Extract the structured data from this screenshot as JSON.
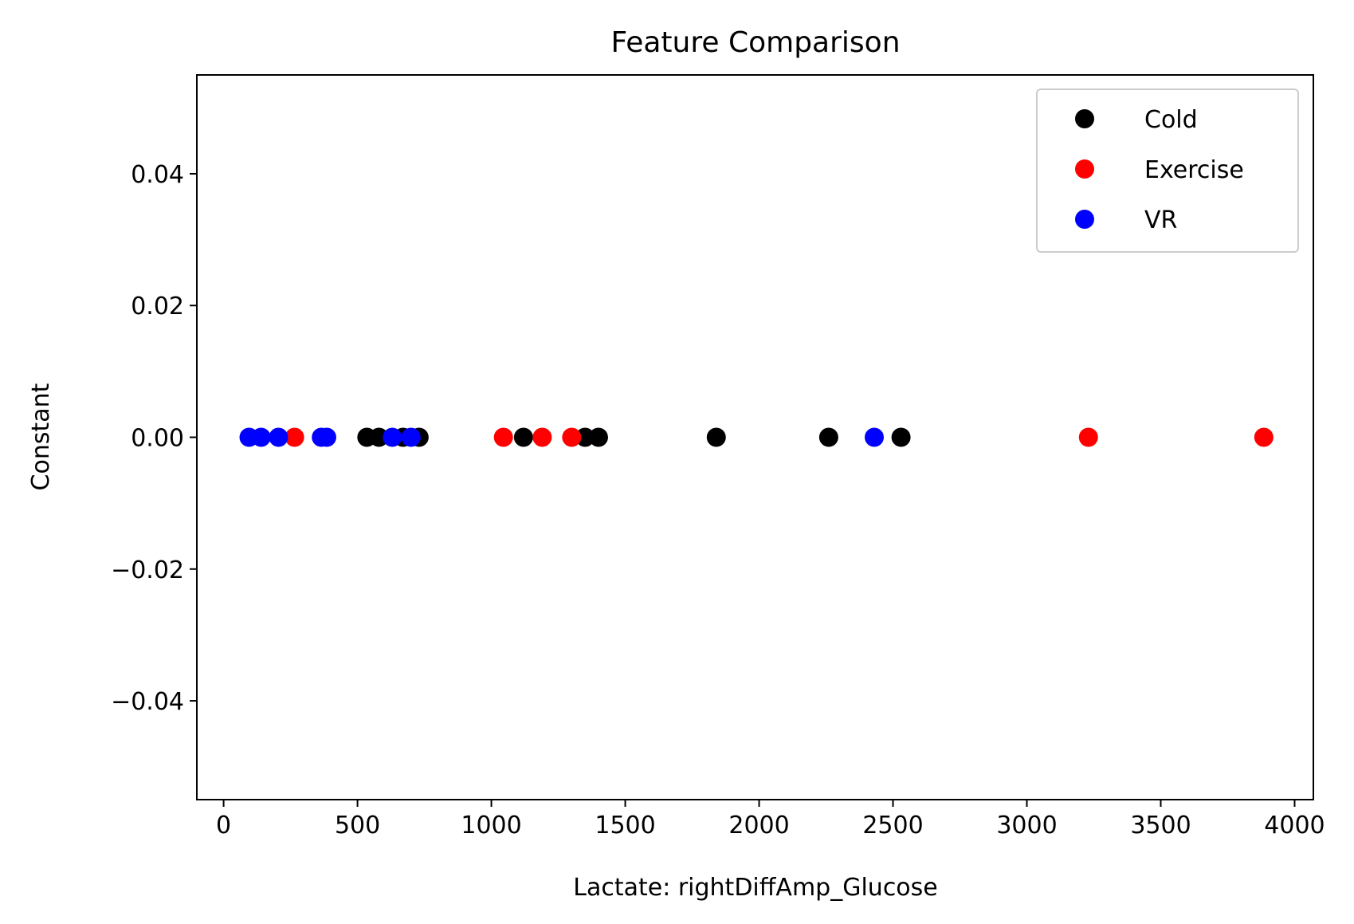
{
  "chart_data": {
    "type": "scatter",
    "title": "Feature Comparison",
    "xlabel": "Lactate: rightDiffAmp_Glucose",
    "ylabel": "Constant",
    "xlim": [
      -100,
      4070
    ],
    "ylim": [
      -0.055,
      0.055
    ],
    "x_ticks": [
      0,
      500,
      1000,
      1500,
      2000,
      2500,
      3000,
      3500,
      4000
    ],
    "x_tick_labels": [
      "0",
      "500",
      "1000",
      "1500",
      "2000",
      "2500",
      "3000",
      "3500",
      "4000"
    ],
    "y_ticks": [
      0.04,
      0.02,
      0.0,
      -0.02,
      -0.04
    ],
    "y_tick_labels": [
      "0.04",
      "0.02",
      "0.00",
      "−0.02",
      "−0.04"
    ],
    "grid": false,
    "legend_position": "top-right",
    "series": [
      {
        "name": "Cold",
        "color": "#000000",
        "points": [
          {
            "x": 535,
            "y": 0
          },
          {
            "x": 580,
            "y": 0
          },
          {
            "x": 670,
            "y": 0
          },
          {
            "x": 730,
            "y": 0
          },
          {
            "x": 1120,
            "y": 0
          },
          {
            "x": 1350,
            "y": 0
          },
          {
            "x": 1400,
            "y": 0
          },
          {
            "x": 1840,
            "y": 0
          },
          {
            "x": 2260,
            "y": 0
          },
          {
            "x": 2530,
            "y": 0
          }
        ]
      },
      {
        "name": "Exercise",
        "color": "#ff0000",
        "points": [
          {
            "x": 265,
            "y": 0
          },
          {
            "x": 1045,
            "y": 0
          },
          {
            "x": 1190,
            "y": 0
          },
          {
            "x": 1300,
            "y": 0
          },
          {
            "x": 3230,
            "y": 0
          },
          {
            "x": 3885,
            "y": 0
          }
        ]
      },
      {
        "name": "VR",
        "color": "#0000ff",
        "points": [
          {
            "x": 95,
            "y": 0
          },
          {
            "x": 140,
            "y": 0
          },
          {
            "x": 205,
            "y": 0
          },
          {
            "x": 365,
            "y": 0
          },
          {
            "x": 385,
            "y": 0
          },
          {
            "x": 630,
            "y": 0
          },
          {
            "x": 700,
            "y": 0
          },
          {
            "x": 2430,
            "y": 0
          }
        ]
      }
    ]
  }
}
